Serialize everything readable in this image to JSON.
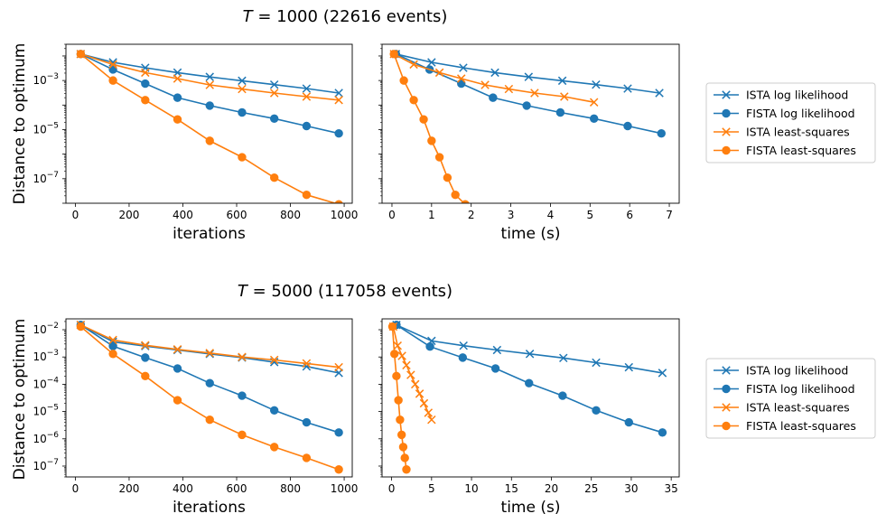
{
  "figure": {
    "row_titles": [
      {
        "var": "T",
        "eq": " = 1000",
        "rest": " (22616 events)"
      },
      {
        "var": "T",
        "eq": " = 5000",
        "rest": " (117058 events)"
      }
    ],
    "ylabel": "Distance to optimum",
    "legend": [
      "ISTA log likelihood",
      "FISTA log likelihood",
      "ISTA least-squares",
      "FISTA least-squares"
    ],
    "colors": {
      "blue": "#1f77b4",
      "orange": "#ff7f0e"
    }
  },
  "chart_data": [
    {
      "type": "line",
      "y_scale": "log",
      "xlabel": "iterations",
      "ylabel": "Distance to optimum",
      "xlim": [
        -35,
        1030
      ],
      "ylim": [
        1e-08,
        0.03
      ],
      "xticks": [
        0,
        200,
        400,
        600,
        800,
        1000
      ],
      "yticks": [
        {
          "v": 0.001,
          "base": "10",
          "exp": "−3"
        },
        {
          "v": 1e-05,
          "base": "10",
          "exp": "−5"
        },
        {
          "v": 1e-07,
          "base": "10",
          "exp": "−7"
        }
      ],
      "legend_position": "right",
      "series": [
        {
          "name": "ISTA log likelihood",
          "color": "#1f77b4",
          "marker": "x",
          "x": [
            20,
            140,
            260,
            380,
            500,
            620,
            740,
            860,
            980
          ],
          "y": [
            0.012,
            0.0055,
            0.0033,
            0.0021,
            0.0014,
            0.00098,
            0.00068,
            0.00047,
            0.00031
          ]
        },
        {
          "name": "FISTA log likelihood",
          "color": "#1f77b4",
          "marker": "o",
          "x": [
            20,
            140,
            260,
            380,
            500,
            620,
            740,
            860,
            980
          ],
          "y": [
            0.012,
            0.0028,
            0.00075,
            0.0002,
            9.5e-05,
            5e-05,
            2.8e-05,
            1.4e-05,
            7e-06
          ]
        },
        {
          "name": "ISTA least-squares",
          "color": "#ff7f0e",
          "marker": "x",
          "x": [
            20,
            140,
            260,
            380,
            500,
            620,
            740,
            860,
            980
          ],
          "y": [
            0.012,
            0.0045,
            0.0021,
            0.0012,
            0.00066,
            0.00045,
            0.00031,
            0.00022,
            0.00016
          ]
        },
        {
          "name": "FISTA least-squares",
          "color": "#ff7f0e",
          "marker": "o",
          "x": [
            20,
            140,
            260,
            380,
            500,
            620,
            740,
            860,
            980
          ],
          "y": [
            0.012,
            0.001,
            0.00016,
            2.6e-05,
            3.5e-06,
            7.5e-07,
            1.1e-07,
            2.2e-08,
            9e-09
          ]
        }
      ]
    },
    {
      "type": "line",
      "y_scale": "log",
      "xlabel": "time (s)",
      "xlim": [
        -0.25,
        7.25
      ],
      "ylim": [
        1e-08,
        0.03
      ],
      "xticks": [
        0,
        1,
        2,
        3,
        4,
        5,
        6,
        7
      ],
      "series": [
        {
          "name": "ISTA log likelihood",
          "color": "#1f77b4",
          "marker": "x",
          "x": [
            0.1,
            1.0,
            1.8,
            2.6,
            3.45,
            4.3,
            5.15,
            5.95,
            6.75
          ],
          "y": [
            0.012,
            0.0055,
            0.0033,
            0.0021,
            0.0014,
            0.00098,
            0.00068,
            0.00047,
            0.00031
          ]
        },
        {
          "name": "FISTA log likelihood",
          "color": "#1f77b4",
          "marker": "o",
          "x": [
            0.1,
            0.95,
            1.75,
            2.55,
            3.4,
            4.25,
            5.1,
            5.95,
            6.8
          ],
          "y": [
            0.012,
            0.0028,
            0.00075,
            0.0002,
            9.5e-05,
            5e-05,
            2.8e-05,
            1.4e-05,
            7e-06
          ]
        },
        {
          "name": "ISTA least-squares",
          "color": "#ff7f0e",
          "marker": "x",
          "x": [
            0.05,
            0.55,
            1.2,
            1.75,
            2.35,
            2.95,
            3.6,
            4.35,
            5.1
          ],
          "y": [
            0.012,
            0.0045,
            0.0021,
            0.0012,
            0.00066,
            0.00045,
            0.00031,
            0.00022,
            0.00013
          ]
        },
        {
          "name": "FISTA least-squares",
          "color": "#ff7f0e",
          "marker": "o",
          "x": [
            0.05,
            0.3,
            0.55,
            0.8,
            1.0,
            1.2,
            1.4,
            1.6,
            1.85
          ],
          "y": [
            0.012,
            0.001,
            0.00016,
            2.6e-05,
            3.5e-06,
            7.5e-07,
            1.1e-07,
            2.2e-08,
            9e-09
          ]
        }
      ]
    },
    {
      "type": "line",
      "y_scale": "log",
      "xlabel": "iterations",
      "ylabel": "Distance to optimum",
      "xlim": [
        -35,
        1030
      ],
      "ylim": [
        4e-08,
        0.025
      ],
      "xticks": [
        0,
        200,
        400,
        600,
        800,
        1000
      ],
      "yticks": [
        {
          "v": 0.01,
          "base": "10",
          "exp": "−2"
        },
        {
          "v": 0.001,
          "base": "10",
          "exp": "−3"
        },
        {
          "v": 0.0001,
          "base": "10",
          "exp": "−4"
        },
        {
          "v": 1e-05,
          "base": "10",
          "exp": "−5"
        },
        {
          "v": 1e-06,
          "base": "10",
          "exp": "−6"
        },
        {
          "v": 1e-07,
          "base": "10",
          "exp": "−7"
        }
      ],
      "series": [
        {
          "name": "ISTA log likelihood",
          "color": "#1f77b4",
          "marker": "x",
          "x": [
            20,
            140,
            260,
            380,
            500,
            620,
            740,
            860,
            980
          ],
          "y": [
            0.015,
            0.0036,
            0.0025,
            0.0018,
            0.0013,
            0.00095,
            0.00065,
            0.00045,
            0.00026
          ]
        },
        {
          "name": "FISTA log likelihood",
          "color": "#1f77b4",
          "marker": "o",
          "x": [
            20,
            140,
            260,
            380,
            500,
            620,
            740,
            860,
            980
          ],
          "y": [
            0.015,
            0.0025,
            0.00095,
            0.00038,
            0.00011,
            3.8e-05,
            1.1e-05,
            4e-06,
            1.7e-06
          ]
        },
        {
          "name": "ISTA least-squares",
          "color": "#ff7f0e",
          "marker": "x",
          "x": [
            20,
            140,
            260,
            380,
            500,
            620,
            740,
            860,
            980
          ],
          "y": [
            0.015,
            0.0042,
            0.0027,
            0.0019,
            0.0014,
            0.001,
            0.00078,
            0.00058,
            0.00042
          ]
        },
        {
          "name": "FISTA least-squares",
          "color": "#ff7f0e",
          "marker": "o",
          "x": [
            20,
            140,
            260,
            380,
            500,
            620,
            740,
            860,
            980
          ],
          "y": [
            0.013,
            0.0013,
            0.0002,
            2.6e-05,
            5e-06,
            1.4e-06,
            5e-07,
            2e-07,
            7.5e-08
          ]
        }
      ]
    },
    {
      "type": "line",
      "y_scale": "log",
      "xlabel": "time (s)",
      "xlim": [
        -1.2,
        36
      ],
      "ylim": [
        4e-08,
        0.025
      ],
      "xticks": [
        0,
        5,
        10,
        15,
        20,
        25,
        30,
        35
      ],
      "series": [
        {
          "name": "ISTA log likelihood",
          "color": "#1f77b4",
          "marker": "x",
          "x": [
            0.6,
            5.0,
            9.0,
            13.2,
            17.3,
            21.5,
            25.6,
            29.7,
            33.9
          ],
          "y": [
            0.015,
            0.0039,
            0.0026,
            0.0018,
            0.0013,
            0.00092,
            0.00062,
            0.00042,
            0.00026
          ]
        },
        {
          "name": "FISTA log likelihood",
          "color": "#1f77b4",
          "marker": "o",
          "x": [
            0.6,
            4.8,
            8.9,
            13.0,
            17.2,
            21.4,
            25.6,
            29.7,
            33.9
          ],
          "y": [
            0.015,
            0.0024,
            0.00095,
            0.00038,
            0.00011,
            3.8e-05,
            1.1e-05,
            4e-06,
            1.7e-06
          ]
        },
        {
          "name": "ISTA least-squares",
          "color": "#ff7f0e",
          "marker": "x",
          "x": [
            0.2,
            0.75,
            1.3,
            1.85,
            2.4,
            2.95,
            3.5,
            4.05,
            4.6,
            5.0
          ],
          "y": [
            0.013,
            0.0026,
            0.0011,
            0.0005,
            0.00022,
            0.0001,
            4.5e-05,
            2e-05,
            9e-06,
            5e-06
          ]
        },
        {
          "name": "FISTA least-squares",
          "color": "#ff7f0e",
          "marker": "o",
          "x": [
            0.1,
            0.35,
            0.6,
            0.85,
            1.05,
            1.25,
            1.45,
            1.65,
            1.85
          ],
          "y": [
            0.013,
            0.0013,
            0.0002,
            2.6e-05,
            5e-06,
            1.4e-06,
            5e-07,
            2e-07,
            7.5e-08
          ]
        }
      ]
    }
  ]
}
